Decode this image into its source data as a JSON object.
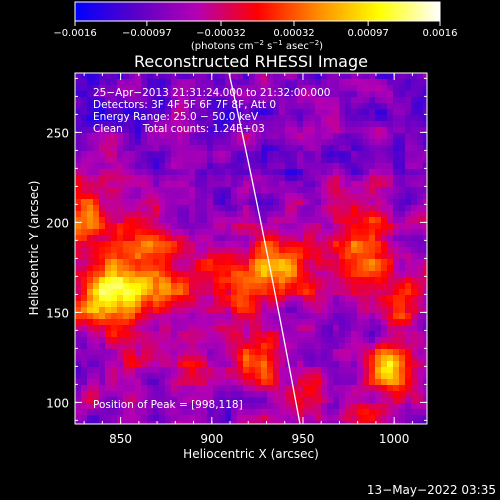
{
  "chart_data": {
    "type": "heatmap",
    "title": "Reconstructed RHESSI Image",
    "xlabel": "Heliocentric X (arcsec)",
    "ylabel": "Heliocentric Y (arcsec)",
    "xlim": [
      825,
      1018
    ],
    "ylim": [
      88,
      283
    ],
    "x_ticks": [
      850,
      900,
      950,
      1000
    ],
    "x_tick_labels": [
      "850",
      "900",
      "950",
      "1000"
    ],
    "y_ticks": [
      100,
      150,
      200,
      250
    ],
    "y_tick_labels": [
      "100",
      "150",
      "200",
      "250"
    ],
    "colorbar": {
      "range": [
        -0.0016,
        0.0016
      ],
      "ticks": [
        -0.0016,
        -0.00097,
        -0.00032,
        0.00032,
        0.00097,
        0.0016
      ],
      "tick_labels": [
        "−0.0016",
        "−0.00097",
        "−0.00032",
        "0.00032",
        "0.00097",
        "0.0016"
      ],
      "unit_main": "(photons cm",
      "unit_exp1": "−2",
      "unit_mid": " s",
      "unit_exp2": "−1",
      "unit_tail": " asec",
      "unit_exp3": "−2",
      "unit_close": ")",
      "colormap": [
        "#0000ff",
        "#5a00c8",
        "#b400b4",
        "#ff0000",
        "#ff8c00",
        "#ffff00",
        "#ffffff"
      ]
    },
    "annotations": [
      "25−Apr−2013 21:31:24.000 to 21:32:00.000",
      "Detectors: 3F 4F 5F 6F 7F 8F, Att 0",
      "Energy Range: 25.0 − 50.0 keV",
      "Clean      Total counts: 1.24E+03"
    ],
    "peak_label": "Position of Peak = [998,118]",
    "peak": [
      998,
      118
    ],
    "grid": false,
    "sources": [
      {
        "x": 843,
        "y": 158,
        "amp": 1.0,
        "sx": 14,
        "sy": 12
      },
      {
        "x": 862,
        "y": 188,
        "amp": 0.75,
        "sx": 14,
        "sy": 16
      },
      {
        "x": 830,
        "y": 205,
        "amp": 0.55,
        "sx": 8,
        "sy": 14
      },
      {
        "x": 880,
        "y": 163,
        "amp": 0.5,
        "sx": 10,
        "sy": 10
      },
      {
        "x": 915,
        "y": 168,
        "amp": 0.7,
        "sx": 14,
        "sy": 14
      },
      {
        "x": 942,
        "y": 175,
        "amp": 0.65,
        "sx": 12,
        "sy": 14
      },
      {
        "x": 925,
        "y": 120,
        "amp": 0.55,
        "sx": 12,
        "sy": 10
      },
      {
        "x": 890,
        "y": 120,
        "amp": 0.45,
        "sx": 10,
        "sy": 10
      },
      {
        "x": 850,
        "y": 115,
        "amp": 0.35,
        "sx": 10,
        "sy": 10
      },
      {
        "x": 985,
        "y": 180,
        "amp": 0.6,
        "sx": 14,
        "sy": 14
      },
      {
        "x": 975,
        "y": 210,
        "amp": 0.35,
        "sx": 10,
        "sy": 12
      },
      {
        "x": 998,
        "y": 118,
        "amp": 1.0,
        "sx": 9,
        "sy": 9
      },
      {
        "x": 1005,
        "y": 150,
        "amp": 0.45,
        "sx": 8,
        "sy": 12
      },
      {
        "x": 955,
        "y": 105,
        "amp": 0.4,
        "sx": 10,
        "sy": 8
      },
      {
        "x": 985,
        "y": 95,
        "amp": 0.4,
        "sx": 10,
        "sy": 6
      }
    ]
  },
  "footer": {
    "date": "13−May−2022 03:35"
  }
}
